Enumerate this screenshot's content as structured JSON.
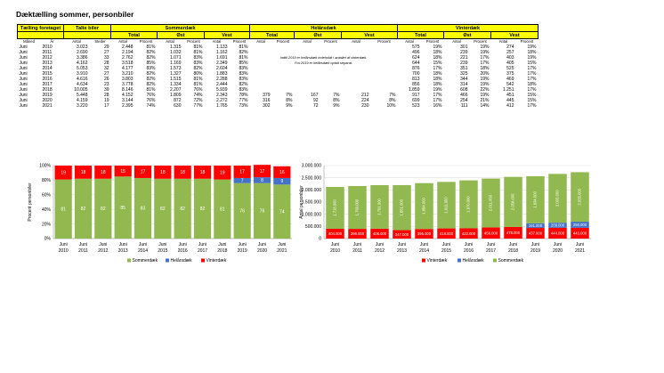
{
  "title": "Dæktælling sommer, personbiler",
  "table": {
    "h_counting": "Tælling foretaget",
    "h_counted": "Talte biler",
    "h_summer": "Sommerdæk",
    "h_allseason": "Helårsdæk",
    "h_winter": "Vinterdæk",
    "h_total": "Total",
    "h_east": "Øst",
    "h_west": "Vest",
    "c_month": "Måned",
    "c_year": "År",
    "c_count": "Antal",
    "c_sites": "Steder",
    "c_pct": "Procent",
    "note1": "Indtil 2019 er helårsdæk indeholdt i antallet af vinterdæk.",
    "note2": "Fra 2019 er helårsdæk optalt separat.",
    "rows": [
      [
        "Juni",
        "2010",
        "3.023",
        "29",
        "2.448",
        "81%",
        "1.315",
        "81%",
        "1.133",
        "81%",
        "",
        "",
        "",
        "",
        "",
        "",
        "575",
        "19%",
        "301",
        "19%",
        "274",
        "19%"
      ],
      [
        "Juni",
        "2011",
        "2.690",
        "27",
        "2.194",
        "82%",
        "1.032",
        "81%",
        "1.162",
        "82%",
        "",
        "",
        "",
        "",
        "",
        "",
        "496",
        "18%",
        "239",
        "19%",
        "257",
        "18%"
      ],
      [
        "Juni",
        "2012",
        "3.386",
        "33",
        "2.762",
        "82%",
        "1.071",
        "83%",
        "1.691",
        "81%",
        "",
        "",
        "",
        "",
        "",
        "",
        "624",
        "18%",
        "221",
        "17%",
        "403",
        "19%"
      ],
      [
        "Juni",
        "2013",
        "4.162",
        "28",
        "3.518",
        "85%",
        "1.169",
        "83%",
        "2.349",
        "85%",
        "",
        "",
        "",
        "",
        "",
        "",
        "644",
        "15%",
        "239",
        "17%",
        "405",
        "15%"
      ],
      [
        "Juni",
        "2014",
        "5.053",
        "32",
        "4.177",
        "83%",
        "1.573",
        "82%",
        "2.604",
        "83%",
        "",
        "",
        "",
        "",
        "",
        "",
        "876",
        "17%",
        "351",
        "18%",
        "525",
        "17%"
      ],
      [
        "Juni",
        "2015",
        "3.910",
        "27",
        "3.210",
        "82%",
        "1.327",
        "80%",
        "1.883",
        "83%",
        "",
        "",
        "",
        "",
        "",
        "",
        "700",
        "18%",
        "325",
        "20%",
        "375",
        "17%"
      ],
      [
        "Juni",
        "2016",
        "4.616",
        "26",
        "3.803",
        "82%",
        "1.515",
        "81%",
        "2.288",
        "83%",
        "",
        "",
        "",
        "",
        "",
        "",
        "813",
        "18%",
        "344",
        "19%",
        "469",
        "17%"
      ],
      [
        "Juni",
        "2017",
        "4.634",
        "23",
        "3.778",
        "82%",
        "1.334",
        "81%",
        "2.444",
        "82%",
        "",
        "",
        "",
        "",
        "",
        "",
        "856",
        "18%",
        "314",
        "19%",
        "542",
        "18%"
      ],
      [
        "Juni",
        "2018",
        "10.005",
        "39",
        "8.146",
        "81%",
        "2.207",
        "76%",
        "5.939",
        "83%",
        "",
        "",
        "",
        "",
        "",
        "",
        "1.859",
        "19%",
        "608",
        "22%",
        "1.251",
        "17%"
      ],
      [
        "Juni",
        "2019",
        "5.448",
        "28",
        "4.152",
        "76%",
        "1.809",
        "74%",
        "2.343",
        "78%",
        "379",
        "7%",
        "167",
        "7%",
        "212",
        "7%",
        "917",
        "17%",
        "466",
        "19%",
        "451",
        "15%"
      ],
      [
        "Juni",
        "2020",
        "4.159",
        "19",
        "3.144",
        "76%",
        "872",
        "72%",
        "2.272",
        "77%",
        "316",
        "8%",
        "92",
        "8%",
        "224",
        "8%",
        "699",
        "17%",
        "254",
        "21%",
        "445",
        "15%"
      ],
      [
        "Juni",
        "2021",
        "3.220",
        "17",
        "2.395",
        "74%",
        "630",
        "77%",
        "1.765",
        "73%",
        "302",
        "9%",
        "72",
        "9%",
        "230",
        "10%",
        "523",
        "16%",
        "111",
        "14%",
        "412",
        "17%"
      ]
    ]
  },
  "colors": {
    "summer": "#92b94f",
    "allseason": "#4472c4",
    "winter": "#ff0000",
    "header": "#ffff00"
  },
  "charts": [
    {
      "type": "bar",
      "stacked": true,
      "categories": [
        [
          "Juni",
          "2010"
        ],
        [
          "Juni",
          "2011"
        ],
        [
          "Juni",
          "2012"
        ],
        [
          "Juni",
          "2013"
        ],
        [
          "Juni",
          "2014"
        ],
        [
          "Juni",
          "2015"
        ],
        [
          "Juni",
          "2016"
        ],
        [
          "Juni",
          "2017"
        ],
        [
          "Juni",
          "2018"
        ],
        [
          "Juni",
          "2019"
        ],
        [
          "Juni",
          "2020"
        ],
        [
          "Juni",
          "2021"
        ]
      ],
      "ylabel": "Procent personbiler",
      "ylim": [
        0,
        100
      ],
      "yticks": [
        "0%",
        "20%",
        "40%",
        "60%",
        "80%",
        "100%"
      ],
      "series": [
        {
          "name": "Sommerdæk",
          "values": [
            81,
            82,
            82,
            85,
            83,
            82,
            82,
            82,
            81,
            76,
            76,
            74
          ],
          "labels": [
            "81",
            "82",
            "82",
            "85",
            "83",
            "82",
            "82",
            "82",
            "81",
            "76",
            "76",
            "74"
          ]
        },
        {
          "name": "Helårsdæk",
          "values": [
            0,
            0,
            0,
            0,
            0,
            0,
            0,
            0,
            0,
            7,
            8,
            9
          ],
          "labels": [
            "",
            "",
            "",
            "",
            "",
            "",
            "",
            "",
            "",
            "7",
            "8",
            "9"
          ]
        },
        {
          "name": "Vinterdæk",
          "values": [
            19,
            18,
            18,
            15,
            17,
            18,
            18,
            18,
            19,
            17,
            17,
            16
          ],
          "labels": [
            "19",
            "18",
            "18",
            "15",
            "17",
            "18",
            "18",
            "18",
            "19",
            "17",
            "17",
            "16"
          ]
        }
      ],
      "legend": "bottom"
    },
    {
      "type": "bar",
      "stacked": true,
      "categories": [
        [
          "Juni",
          "2010"
        ],
        [
          "Juni",
          "2011"
        ],
        [
          "Juni",
          "2012"
        ],
        [
          "Juni",
          "2013"
        ],
        [
          "Juni",
          "2014"
        ],
        [
          "Juni",
          "2015"
        ],
        [
          "Juni",
          "2016"
        ],
        [
          "Juni",
          "2017"
        ],
        [
          "Juni",
          "2018"
        ],
        [
          "Juni",
          "2019"
        ],
        [
          "Juni",
          "2020"
        ],
        [
          "Juni",
          "2021"
        ]
      ],
      "ylabel": "Antal personbiler",
      "ylim": [
        0,
        3000000
      ],
      "yticks": [
        "0",
        "500.000",
        "1.000.000",
        "1.500.000",
        "2.000.000",
        "2.500.000",
        "3.000.000"
      ],
      "series": [
        {
          "name": "Vinterdæk",
          "values": [
            404000,
            399000,
            406000,
            347000,
            395000,
            418000,
            422000,
            456000,
            478000,
            437000,
            444000,
            443000
          ],
          "labels": [
            "404.000",
            "399.000",
            "406.000",
            "347.000",
            "395.000",
            "418.000",
            "422.000",
            "456.000",
            "478.000",
            "437.000",
            "444.000",
            "443.000"
          ]
        },
        {
          "name": "Helårsdæk",
          "values": [
            0,
            0,
            0,
            0,
            0,
            0,
            0,
            0,
            0,
            191000,
            209000,
            250000
          ],
          "labels": [
            "",
            "",
            "",
            "",
            "",
            "",
            "",
            "",
            "",
            "191.000",
            "209.000",
            "250.000"
          ]
        },
        {
          "name": "Sommerdæk",
          "values": [
            1718000,
            1760000,
            1791000,
            1851000,
            1884000,
            1911000,
            1970000,
            2011000,
            2058000,
            1934000,
            2005000,
            2035000
          ],
          "labels": [
            "1.718.000",
            "1.760.000",
            "1.791.000",
            "1.851.000",
            "1.884.000",
            "1.911.000",
            "1.970.000",
            "2.011.000",
            "2.058.000",
            "1.934.000",
            "2.005.000",
            "2.035.000"
          ]
        }
      ],
      "legend": "bottom"
    }
  ]
}
